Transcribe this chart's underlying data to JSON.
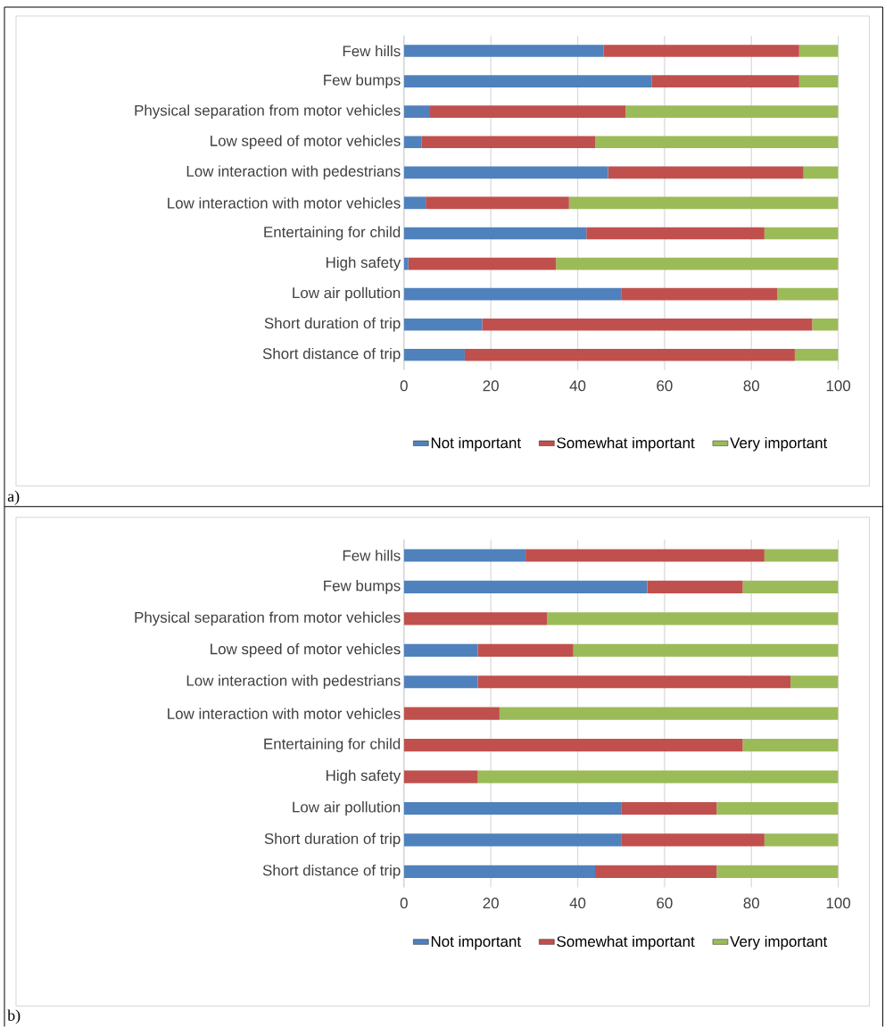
{
  "chart_data": [
    {
      "type": "bar",
      "orientation": "horizontal",
      "stacked": true,
      "categories": [
        "Few hills",
        "Few bumps",
        "Physical separation from motor vehicles",
        "Low speed of motor vehicles",
        "Low interaction with pedestrians",
        "Low interaction with motor vehicles",
        "Entertaining for child",
        "High safety",
        "Low air pollution",
        "Short duration of trip",
        "Short distance of trip"
      ],
      "series": [
        {
          "name": "Not important",
          "color": "#4f81bd",
          "values": [
            46,
            57,
            6,
            4,
            47,
            5,
            42,
            1,
            50,
            18,
            14
          ]
        },
        {
          "name": "Somewhat important",
          "color": "#c0504d",
          "values": [
            45,
            34,
            45,
            40,
            45,
            33,
            41,
            34,
            36,
            76,
            76
          ]
        },
        {
          "name": "Very important",
          "color": "#9bbb59",
          "values": [
            9,
            9,
            49,
            56,
            8,
            62,
            17,
            65,
            14,
            6,
            10
          ]
        }
      ],
      "xlim": [
        0,
        100
      ],
      "xticks": [
        0,
        20,
        40,
        60,
        80,
        100
      ],
      "grid": "x",
      "legend": "bottom",
      "annotations": [
        "a)"
      ]
    },
    {
      "type": "bar",
      "orientation": "horizontal",
      "stacked": true,
      "categories": [
        "Few hills",
        "Few bumps",
        "Physical separation from motor vehicles",
        "Low speed of motor vehicles",
        "Low interaction with pedestrians",
        "Low interaction with motor vehicles",
        "Entertaining for child",
        "High safety",
        "Low air pollution",
        "Short duration of trip",
        "Short distance of trip"
      ],
      "series": [
        {
          "name": "Not important",
          "color": "#4f81bd",
          "values": [
            28,
            56,
            0,
            17,
            17,
            0,
            0,
            0,
            50,
            50,
            44
          ]
        },
        {
          "name": "Somewhat important",
          "color": "#c0504d",
          "values": [
            55,
            22,
            33,
            22,
            72,
            22,
            78,
            17,
            22,
            33,
            28
          ]
        },
        {
          "name": "Very important",
          "color": "#9bbb59",
          "values": [
            17,
            22,
            67,
            61,
            11,
            78,
            22,
            83,
            28,
            17,
            28
          ]
        }
      ],
      "xlim": [
        0,
        100
      ],
      "xticks": [
        0,
        20,
        40,
        60,
        80,
        100
      ],
      "grid": "x",
      "legend": "bottom",
      "annotations": [
        "b)"
      ]
    }
  ]
}
